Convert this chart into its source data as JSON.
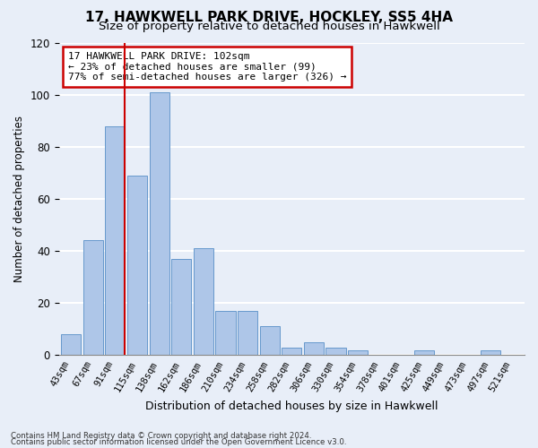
{
  "title": "17, HAWKWELL PARK DRIVE, HOCKLEY, SS5 4HA",
  "subtitle": "Size of property relative to detached houses in Hawkwell",
  "xlabel": "Distribution of detached houses by size in Hawkwell",
  "ylabel": "Number of detached properties",
  "categories": [
    "43sqm",
    "67sqm",
    "91sqm",
    "115sqm",
    "138sqm",
    "162sqm",
    "186sqm",
    "210sqm",
    "234sqm",
    "258sqm",
    "282sqm",
    "306sqm",
    "330sqm",
    "354sqm",
    "378sqm",
    "401sqm",
    "425sqm",
    "449sqm",
    "473sqm",
    "497sqm",
    "521sqm"
  ],
  "values": [
    8,
    44,
    88,
    69,
    101,
    37,
    41,
    17,
    17,
    11,
    3,
    5,
    3,
    2,
    0,
    0,
    2,
    0,
    0,
    2,
    0
  ],
  "bar_color": "#aec6e8",
  "bar_edge_color": "#6699cc",
  "ylim": [
    0,
    120
  ],
  "yticks": [
    0,
    20,
    40,
    60,
    80,
    100,
    120
  ],
  "annotation_text": "17 HAWKWELL PARK DRIVE: 102sqm\n← 23% of detached houses are smaller (99)\n77% of semi-detached houses are larger (326) →",
  "vline_x_index": 2,
  "footer_line1": "Contains HM Land Registry data © Crown copyright and database right 2024.",
  "footer_line2": "Contains public sector information licensed under the Open Government Licence v3.0.",
  "background_color": "#e8eef8",
  "plot_background_color": "#e8eef8",
  "grid_color": "#ffffff",
  "annotation_box_color": "#ffffff",
  "annotation_border_color": "#cc0000",
  "vline_color": "#cc0000",
  "title_fontsize": 11,
  "subtitle_fontsize": 9.5
}
